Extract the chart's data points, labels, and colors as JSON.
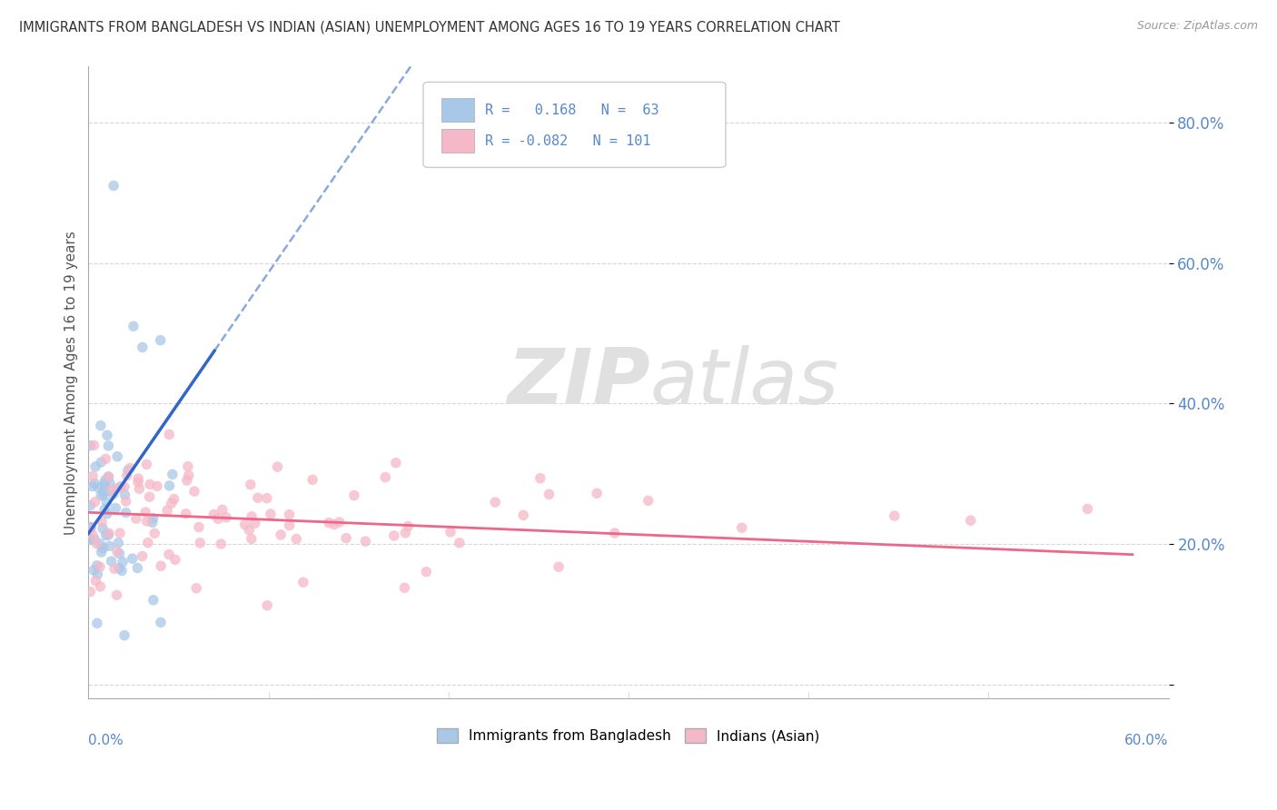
{
  "title": "IMMIGRANTS FROM BANGLADESH VS INDIAN (ASIAN) UNEMPLOYMENT AMONG AGES 16 TO 19 YEARS CORRELATION CHART",
  "source": "Source: ZipAtlas.com",
  "ylabel": "Unemployment Among Ages 16 to 19 years",
  "y_ticks": [
    0.0,
    0.2,
    0.4,
    0.6,
    0.8
  ],
  "y_tick_labels": [
    "",
    "20.0%",
    "40.0%",
    "60.0%",
    "80.0%"
  ],
  "x_lim": [
    0.0,
    0.6
  ],
  "y_lim": [
    -0.02,
    0.88
  ],
  "blue_R": 0.168,
  "blue_N": 63,
  "pink_R": -0.082,
  "pink_N": 101,
  "legend_label_blue": "Immigrants from Bangladesh",
  "legend_label_pink": "Indians (Asian)",
  "blue_dot_color": "#a8c8e8",
  "pink_dot_color": "#f5b8c8",
  "blue_line_color": "#3366cc",
  "pink_line_color": "#ee6688",
  "blue_dash_color": "#88aadd",
  "watermark_color": "#dddddd",
  "background_color": "#ffffff",
  "grid_color": "#cccccc",
  "tick_color": "#5588cc",
  "title_color": "#333333",
  "source_color": "#999999",
  "ylabel_color": "#555555"
}
